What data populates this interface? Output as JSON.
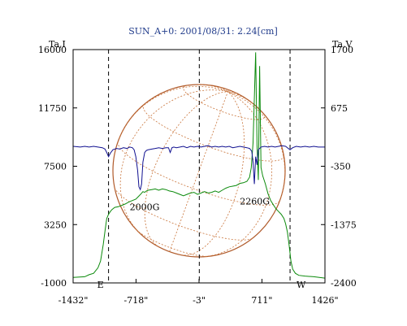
{
  "chart_data": {
    "type": "line",
    "title": "SUN_A+0: 2001/08/31: 2.24[cm]",
    "y_left_label": "Ta,I",
    "y_right_label": "Ta,V",
    "y_left_range": [
      -1000,
      16000
    ],
    "y_left_ticks": [
      "16000",
      "11750",
      "7500",
      "3250",
      "-1000"
    ],
    "y_right_range": [
      -2400,
      1700
    ],
    "y_right_ticks": [
      "1700",
      "675",
      "-350",
      "-1375",
      "-2400"
    ],
    "x_range": [
      -1432,
      1426
    ],
    "x_ticks": [
      "-1432\"",
      "-718\"",
      "-3\"",
      "711\"",
      "1426\""
    ],
    "x_tick_values": [
      -1432,
      -718,
      -3,
      711,
      1426
    ],
    "limb_markers": {
      "east_x": -1030,
      "west_x": 1030,
      "east_label": "E",
      "west_label": "W"
    },
    "annotations": [
      {
        "label": "2000G",
        "x": -620,
        "y": 5500
      },
      {
        "label": "2260G",
        "x": 630,
        "y": 5900
      }
    ],
    "series": [
      {
        "axis": "left",
        "color": "#0b8a0b",
        "x": [
          -1432,
          -1300,
          -1250,
          -1200,
          -1150,
          -1120,
          -1090,
          -1070,
          -1050,
          -1030,
          -1010,
          -990,
          -960,
          -920,
          -880,
          -840,
          -800,
          -760,
          -720,
          -690,
          -660,
          -640,
          -620,
          -600,
          -580,
          -540,
          -500,
          -460,
          -420,
          -380,
          -340,
          -300,
          -260,
          -220,
          -180,
          -140,
          -100,
          -60,
          -20,
          20,
          60,
          100,
          140,
          180,
          220,
          260,
          300,
          340,
          380,
          420,
          460,
          500,
          540,
          570,
          590,
          610,
          625,
          640,
          655,
          670,
          685,
          700,
          720,
          750,
          780,
          810,
          840,
          870,
          900,
          930,
          960,
          980,
          1000,
          1020,
          1040,
          1060,
          1090,
          1130,
          1200,
          1300,
          1426
        ],
        "y": [
          -600,
          -550,
          -400,
          -300,
          100,
          600,
          1800,
          2800,
          3700,
          4000,
          4200,
          4350,
          4500,
          4550,
          4650,
          4750,
          4900,
          5000,
          5100,
          5300,
          5500,
          5650,
          5600,
          5700,
          5750,
          5800,
          5850,
          5750,
          5850,
          5800,
          5700,
          5650,
          5550,
          5450,
          5350,
          5450,
          5550,
          5600,
          5450,
          5550,
          5650,
          5550,
          5600,
          5700,
          5600,
          5750,
          5900,
          6000,
          6050,
          6100,
          6250,
          6300,
          6400,
          6700,
          7400,
          9200,
          12500,
          15800,
          9000,
          6500,
          14800,
          7400,
          6800,
          6200,
          5500,
          5000,
          4700,
          4400,
          4200,
          4000,
          3700,
          3300,
          2700,
          1700,
          600,
          0,
          -300,
          -450,
          -500,
          -550,
          -650
        ]
      },
      {
        "axis": "left",
        "color": "#101090",
        "x": [
          -1432,
          -1350,
          -1300,
          -1250,
          -1200,
          -1150,
          -1100,
          -1070,
          -1050,
          -1030,
          -1010,
          -980,
          -940,
          -900,
          -860,
          -820,
          -790,
          -760,
          -740,
          -720,
          -700,
          -685,
          -670,
          -655,
          -640,
          -620,
          -600,
          -580,
          -540,
          -500,
          -460,
          -420,
          -380,
          -350,
          -330,
          -310,
          -290,
          -260,
          -220,
          -180,
          -140,
          -100,
          -60,
          -20,
          20,
          60,
          100,
          140,
          180,
          220,
          260,
          300,
          340,
          380,
          420,
          460,
          500,
          540,
          570,
          595,
          610,
          625,
          640,
          655,
          670,
          700,
          740,
          780,
          820,
          860,
          900,
          940,
          980,
          1010,
          1030,
          1060,
          1100,
          1150,
          1200,
          1250,
          1300,
          1350,
          1426
        ],
        "y": [
          8950,
          8900,
          8950,
          8900,
          8950,
          8900,
          8850,
          8750,
          8500,
          8200,
          8450,
          8700,
          8800,
          8750,
          8850,
          8800,
          8900,
          8850,
          8700,
          8200,
          7200,
          6000,
          5800,
          6200,
          7800,
          8500,
          8650,
          8700,
          8750,
          8800,
          8850,
          8800,
          8850,
          8850,
          8500,
          8850,
          8900,
          8850,
          8900,
          8950,
          8850,
          8950,
          8900,
          8950,
          8900,
          8950,
          9000,
          8900,
          8950,
          8900,
          8950,
          8900,
          8950,
          8850,
          8900,
          8950,
          8900,
          8850,
          8800,
          8600,
          7800,
          6200,
          8200,
          7600,
          8700,
          8900,
          8950,
          8900,
          8950,
          8900,
          8950,
          9000,
          8950,
          8800,
          8700,
          8850,
          8950,
          8900,
          8950,
          8900,
          8950,
          8900,
          8900
        ]
      }
    ]
  }
}
